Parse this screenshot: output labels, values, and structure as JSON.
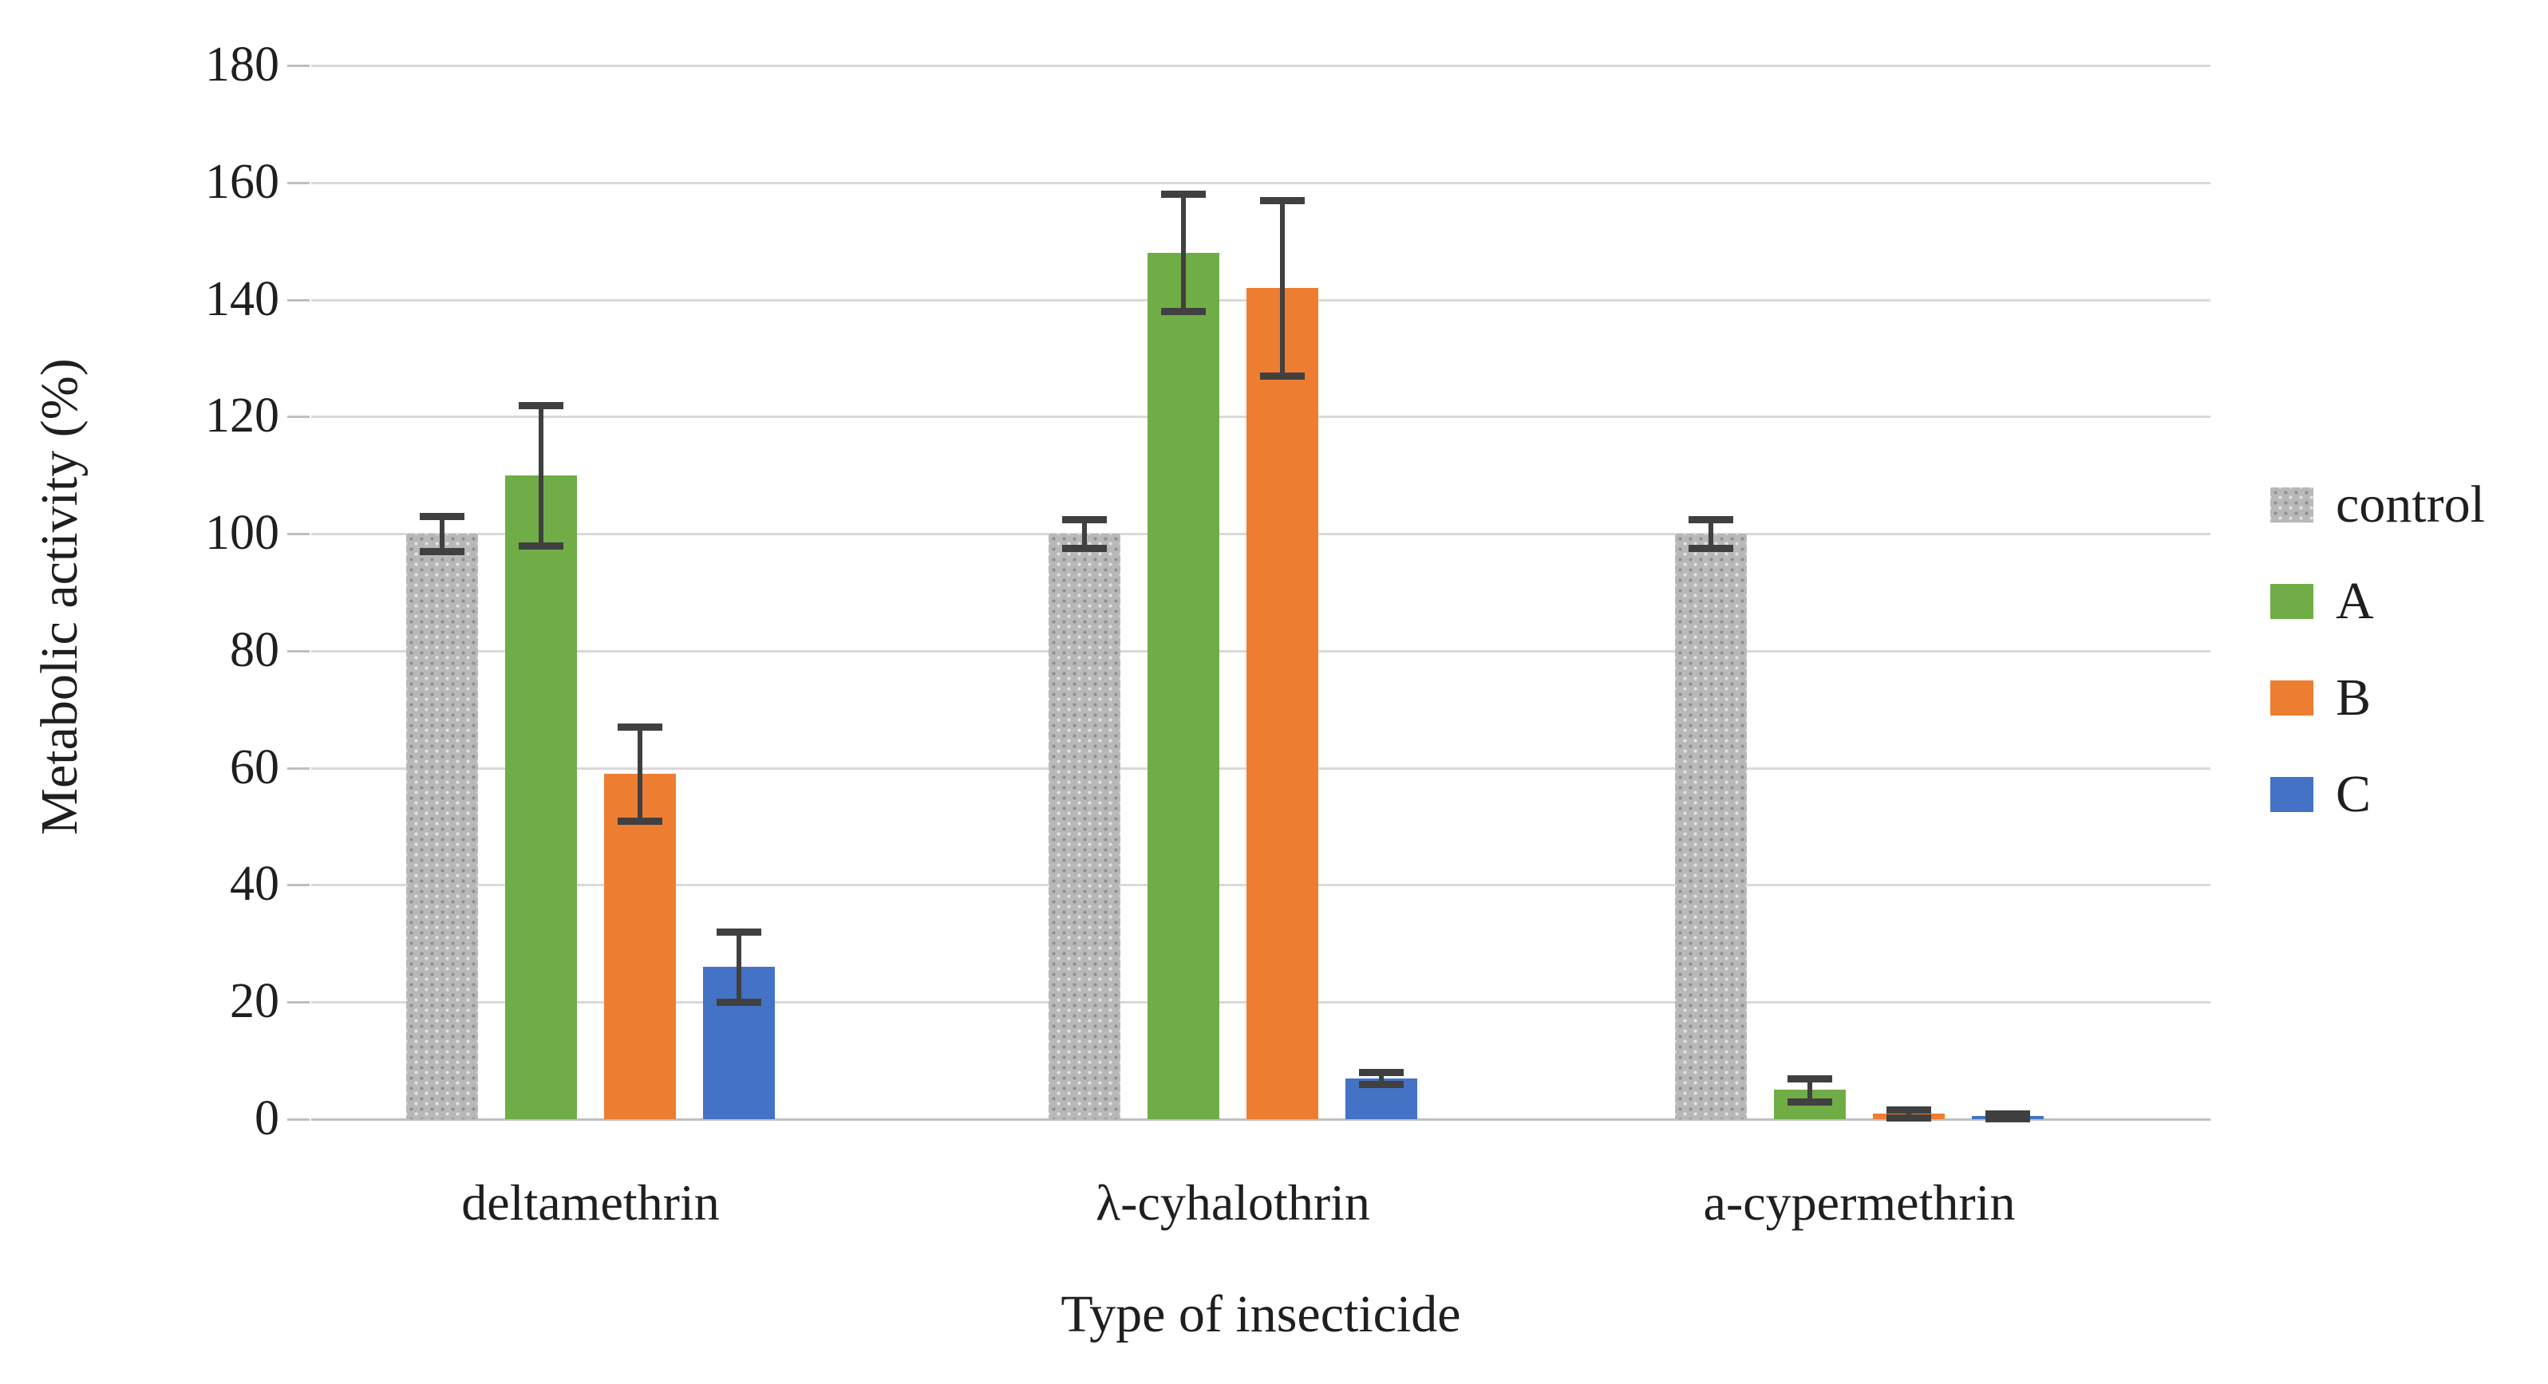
{
  "chart_data": {
    "type": "bar",
    "title": "",
    "xlabel": "Type of insecticide",
    "ylabel": "Metabolic activity (%)",
    "ylim": [
      0,
      180
    ],
    "yticks": [
      0,
      20,
      40,
      60,
      80,
      100,
      120,
      140,
      160,
      180
    ],
    "grid": true,
    "legend_position": "right",
    "categories": [
      "deltamethrin",
      "λ-cyhalothrin",
      "a-cypermethrin"
    ],
    "series": [
      {
        "name": "control",
        "color": "#b8b8b8",
        "pattern": "speckled-gray",
        "values": [
          100,
          100,
          100
        ],
        "errors": [
          3,
          2.5,
          2.5
        ]
      },
      {
        "name": "A",
        "color": "#70ad47",
        "pattern": null,
        "values": [
          110,
          148,
          5
        ],
        "errors": [
          12,
          10,
          2
        ]
      },
      {
        "name": "B",
        "color": "#ed7d31",
        "pattern": null,
        "values": [
          59,
          142,
          1
        ],
        "errors": [
          8,
          15,
          0.7
        ]
      },
      {
        "name": "C",
        "color": "#4472c4",
        "pattern": null,
        "values": [
          26,
          7,
          0.5
        ],
        "errors": [
          6,
          1,
          0.4
        ]
      }
    ],
    "error_bar_color": "#404040",
    "gridline_color": "#d9d9d9",
    "axis_line_color": "#bfbfbf",
    "text_color": "#1f1f1f"
  }
}
